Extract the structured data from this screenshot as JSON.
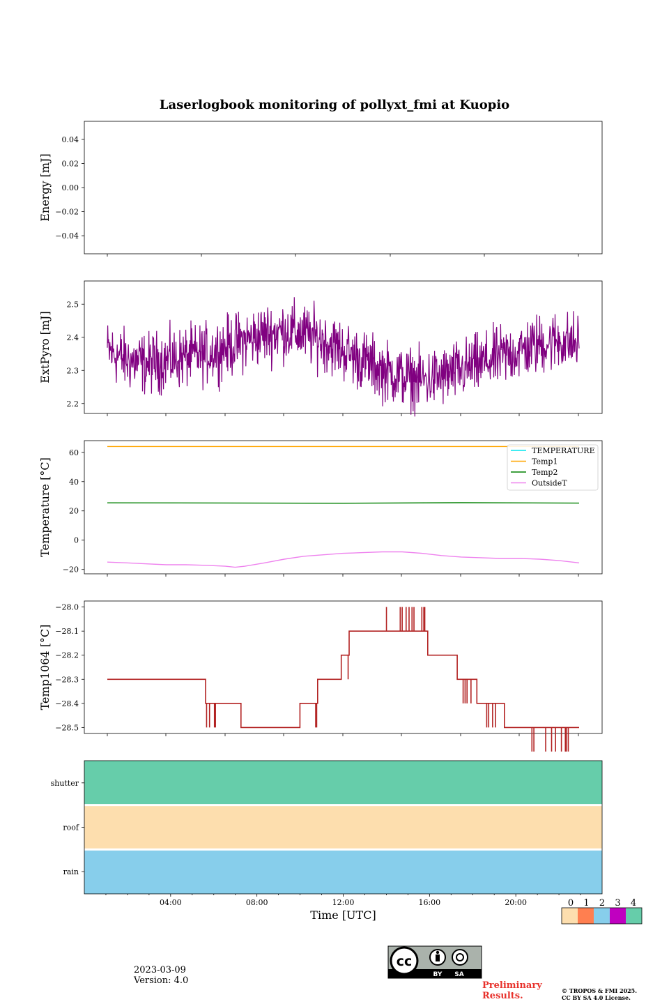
{
  "figure": {
    "title": "Laserlogbook monitoring of pollyxt_fmi at Kuopio",
    "date": "2023-03-09",
    "version": "Version: 4.0",
    "preliminary": [
      "Preliminary",
      "Results."
    ],
    "copyright": [
      "© TROPOS & FMI 2025.",
      "CC BY SA 4.0 License."
    ],
    "license_badge": [
      "cc",
      "BY",
      "SA"
    ]
  },
  "chart_data": [
    {
      "type": "line",
      "panel": "energy",
      "title": "",
      "ylabel": "Energy [mJ]",
      "ylim": [
        -0.055,
        0.055
      ],
      "yticks": [
        0.04,
        0.02,
        0.0,
        -0.02,
        -0.04
      ],
      "ytick_labels": [
        "0.04",
        "0.02",
        "0.00",
        "−0.02",
        "−0.04"
      ],
      "series": [],
      "xlim": [
        0,
        24
      ],
      "xtick_labels": []
    },
    {
      "type": "line",
      "panel": "extpyro",
      "ylabel": "ExtPyro [mJ]",
      "ylim": [
        2.17,
        2.57
      ],
      "yticks": [
        2.5,
        2.4,
        2.3,
        2.2
      ],
      "ytick_labels": [
        "2.5",
        "2.4",
        "2.3",
        "2.2"
      ],
      "xlim": [
        0,
        24
      ],
      "series": [
        {
          "name": "ExtPyro",
          "color": "#800080",
          "x": [
            0.0,
            1.0,
            2.0,
            3.0,
            4.0,
            5.0,
            6.0,
            7.0,
            8.0,
            9.0,
            10.0,
            11.0,
            12.0,
            13.0,
            14.0,
            15.0,
            16.0,
            17.0,
            18.0,
            19.0,
            20.0,
            21.0,
            22.0,
            23.0,
            24.0
          ],
          "y": [
            2.36,
            2.33,
            2.32,
            2.33,
            2.34,
            2.35,
            2.37,
            2.39,
            2.41,
            2.42,
            2.41,
            2.39,
            2.36,
            2.33,
            2.3,
            2.28,
            2.27,
            2.28,
            2.3,
            2.32,
            2.34,
            2.36,
            2.38,
            2.39,
            2.38
          ],
          "noise_amplitude": 0.1
        }
      ]
    },
    {
      "type": "line",
      "panel": "temperature",
      "ylabel": "Temperature [°C]",
      "ylim": [
        -23,
        68
      ],
      "yticks": [
        60,
        40,
        20,
        0,
        -20
      ],
      "ytick_labels": [
        "60",
        "40",
        "20",
        "0",
        "−20"
      ],
      "xlim": [
        0,
        24
      ],
      "legend": "top-right",
      "series": [
        {
          "name": "TEMPERATURE",
          "color": "#00e5ee",
          "x": [],
          "y": []
        },
        {
          "name": "Temp1",
          "color": "#ffa500",
          "x": [
            0,
            24
          ],
          "y": [
            64,
            64
          ]
        },
        {
          "name": "Temp2",
          "color": "#008000",
          "x": [
            0,
            6,
            12,
            18,
            24
          ],
          "y": [
            25.5,
            25.4,
            25.2,
            25.6,
            25.3
          ]
        },
        {
          "name": "OutsideT",
          "color": "#ee82ee",
          "x": [
            0,
            1,
            2,
            3,
            4,
            5,
            6,
            6.5,
            7,
            8,
            9,
            10,
            11,
            12,
            13,
            14,
            15,
            16,
            17,
            18,
            19,
            20,
            21,
            22,
            23,
            24
          ],
          "y": [
            -15.0,
            -15.5,
            -16.2,
            -16.8,
            -16.8,
            -17.2,
            -17.8,
            -18.5,
            -17.8,
            -15.5,
            -13.0,
            -11.0,
            -10.0,
            -9.0,
            -8.5,
            -8.0,
            -8.0,
            -9.0,
            -10.5,
            -11.5,
            -12.0,
            -12.5,
            -12.5,
            -13.0,
            -14.0,
            -15.5
          ]
        }
      ]
    },
    {
      "type": "line",
      "panel": "temp1064",
      "ylabel": "Temp1064 [°C]",
      "ylim": [
        -28.525,
        -27.975
      ],
      "yticks": [
        -28.0,
        -28.1,
        -28.2,
        -28.3,
        -28.4,
        -28.5
      ],
      "ytick_labels": [
        "−28.0",
        "−28.1",
        "−28.2",
        "−28.3",
        "−28.4",
        "−28.5"
      ],
      "xlim": [
        0,
        24
      ],
      "series": [
        {
          "name": "Temp1064",
          "color": "#b22222",
          "x": [
            0.0,
            5.0,
            5.0,
            5.6,
            5.6,
            6.8,
            6.8,
            9.8,
            9.8,
            10.7,
            10.7,
            11.9,
            11.9,
            12.3,
            12.3,
            14.2,
            14.2,
            16.0,
            16.0,
            16.3,
            16.3,
            17.8,
            17.8,
            18.8,
            18.8,
            20.2,
            20.2,
            21.0,
            21.0,
            24.0
          ],
          "y": [
            -28.3,
            -28.3,
            -28.4,
            -28.4,
            -28.4,
            -28.4,
            -28.5,
            -28.5,
            -28.4,
            -28.4,
            -28.3,
            -28.3,
            -28.2,
            -28.2,
            -28.1,
            -28.1,
            -28.1,
            -28.1,
            -28.1,
            -28.1,
            -28.2,
            -28.2,
            -28.3,
            -28.3,
            -28.4,
            -28.4,
            -28.5,
            -28.5,
            -28.5,
            -28.5
          ],
          "flicker_x": [
            5.05,
            5.2,
            5.45,
            5.5,
            10.6,
            10.65,
            12.25,
            14.2,
            14.9,
            15.0,
            15.2,
            15.35,
            15.5,
            15.6,
            16.0,
            16.1,
            16.15,
            18.1,
            18.2,
            18.3,
            18.5,
            19.3,
            19.4,
            19.6,
            19.75,
            21.6,
            21.7,
            22.3,
            22.6,
            22.8,
            23.1,
            23.3,
            23.35,
            23.45
          ]
        }
      ]
    },
    {
      "type": "heatmap",
      "panel": "status",
      "rows": [
        "shutter",
        "roof",
        "rain"
      ],
      "row_values": [
        4,
        0,
        2
      ],
      "xlim": [
        0,
        24
      ],
      "xlabel": "Time [UTC]",
      "xticks": [
        4,
        8,
        12,
        16,
        20
      ],
      "xtick_labels": [
        "04:00",
        "08:00",
        "12:00",
        "16:00",
        "20:00"
      ],
      "colorbar": {
        "labels": [
          "0",
          "1",
          "2",
          "3",
          "4"
        ],
        "colors": [
          "#fddeae",
          "#ff7f50",
          "#87ceeb",
          "#c000c0",
          "#66cdaa"
        ]
      }
    }
  ]
}
